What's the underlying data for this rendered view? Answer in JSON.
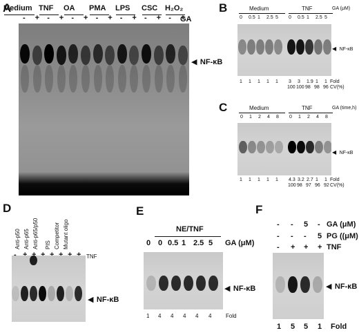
{
  "panelA": {
    "letter": "A",
    "treatments": [
      "Medium",
      "TNF",
      "OA",
      "PMA",
      "LPS",
      "CSC",
      "H₂O₂"
    ],
    "signs": [
      "-",
      "+",
      "-",
      "+",
      "-",
      "+",
      "-",
      "+",
      "-",
      "+",
      "-",
      "+",
      "-",
      "+"
    ],
    "ga_label": "GA",
    "band_label": "NF-κB"
  },
  "panelB": {
    "letter": "B",
    "groups": [
      "Medium",
      "TNF"
    ],
    "ga_label": "GA (μM)",
    "doses": [
      "0",
      "0.5",
      "1",
      "2.5",
      "5",
      "0",
      "0.5",
      "1",
      "2.5",
      "5"
    ],
    "band_label": "NF-κB",
    "fold": [
      "1",
      "1",
      "1",
      "1",
      "1",
      "3",
      "3",
      "1.9",
      "1",
      "1"
    ],
    "cv": [
      "100",
      "100",
      "98",
      "98",
      "96"
    ],
    "fold_label": "Fold",
    "cv_label": "CV(%)"
  },
  "panelC": {
    "letter": "C",
    "groups": [
      "Medium",
      "TNF"
    ],
    "ga_label": "GA (time,h)",
    "times": [
      "0",
      "1",
      "2",
      "4",
      "8",
      "0",
      "1",
      "2",
      "4",
      "8"
    ],
    "band_label": "NF-κB",
    "fold": [
      "1",
      "1",
      "1",
      "1",
      "1",
      "4.3",
      "3.2",
      "2.7",
      "1",
      "1"
    ],
    "cv": [
      "100",
      "98",
      "97",
      "96",
      "92"
    ],
    "fold_label": "Fold",
    "cv_label": "CV(%)"
  },
  "panelD": {
    "letter": "D",
    "lanes": [
      "Anti-p50",
      "Anti-p65",
      "Anti-p65/p50",
      "PIS",
      "Competitor",
      "Mutant oligo"
    ],
    "tnf_signs": [
      "-",
      "+",
      "+",
      "+",
      "+",
      "+",
      "+",
      "+"
    ],
    "tnf_label": "TNF",
    "band_label": "NF-κB"
  },
  "panelE": {
    "letter": "E",
    "group": "NE/TNF",
    "doses": [
      "0",
      "0",
      "0.5",
      "1",
      "2.5",
      "5"
    ],
    "ga_label": "GA (μM)",
    "band_label": "NF-κB",
    "fold": [
      "1",
      "4",
      "4",
      "4",
      "4",
      "4"
    ],
    "fold_label": "Fold"
  },
  "panelF": {
    "letter": "F",
    "rows": [
      {
        "values": [
          "-",
          "-",
          "5",
          "-"
        ],
        "label": "GA (μM)"
      },
      {
        "values": [
          "-",
          "-",
          "-",
          "5"
        ],
        "label": "PG ((μM)"
      },
      {
        "values": [
          "-",
          "+",
          "+",
          "+"
        ],
        "label": "TNF"
      }
    ],
    "band_label": "NF-κB",
    "fold": [
      "1",
      "5",
      "5",
      "1"
    ],
    "fold_label": "Fold"
  }
}
